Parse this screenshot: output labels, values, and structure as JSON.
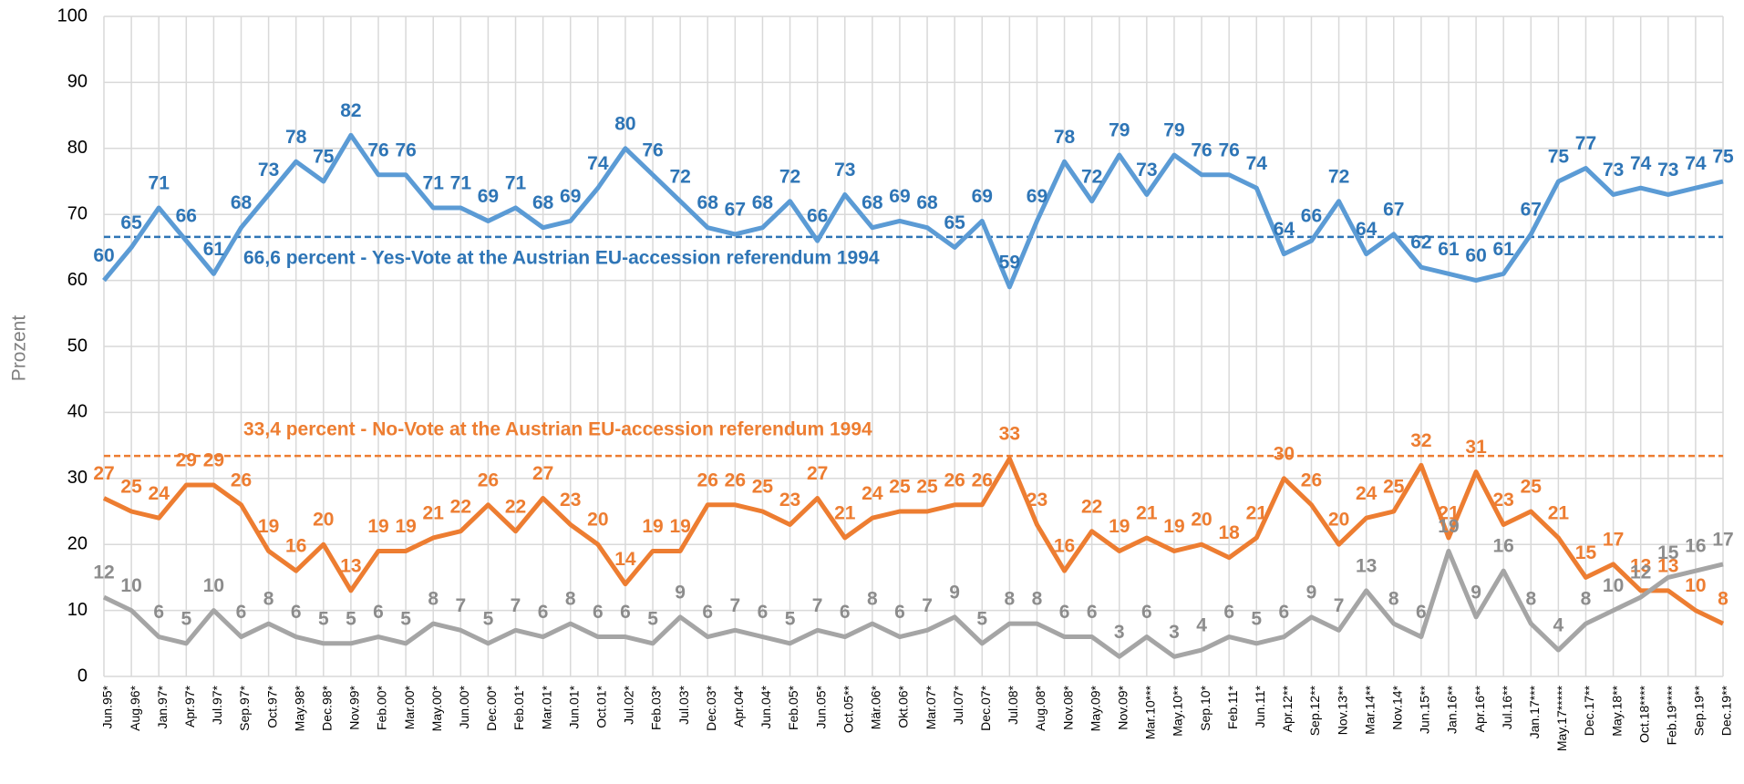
{
  "chart_data": {
    "type": "line",
    "y_label": "Prozent",
    "categories": [
      "Jun.95*",
      "Aug.96*",
      "Jan.97*",
      "Apr.97*",
      "Jul.97*",
      "Sep.97*",
      "Oct.97*",
      "May.98*",
      "Dec.98*",
      "Nov.99*",
      "Feb.00*",
      "Mar.00*",
      "May.00*",
      "Jun.00*",
      "Dec.00*",
      "Feb.01*",
      "Mar.01*",
      "Jun.01*",
      "Oct.01*",
      "Jul.02*",
      "Feb.03*",
      "Jul.03*",
      "Dec.03*",
      "Apr.04*",
      "Jun.04*",
      "Feb.05*",
      "Jun.05*",
      "Oct.05**",
      "Mär.06*",
      "Okt.06*",
      "Mar.07*",
      "Jul.07*",
      "Dec.07*",
      "Jul.08*",
      "Aug.08*",
      "Nov.08*",
      "May.09*",
      "Nov.09*",
      "Mar.10***",
      "May.10**",
      "Sep.10*",
      "Feb.11*",
      "Jun.11*",
      "Apr.12**",
      "Sep.12**",
      "Nov.13**",
      "Mar.14**",
      "Nov.14*",
      "Jun.15**",
      "Jan.16**",
      "Apr.16**",
      "Jul.16**",
      "Jan.17***",
      "May.17*****",
      "Dec.17**",
      "May.18**",
      "Oct.18****",
      "Feb.19****",
      "Sep.19**",
      "Dec.19**"
    ],
    "series": [
      {
        "color": "#5b9bd5",
        "label_color": "#2e75b6",
        "values": [
          60,
          65,
          71,
          66,
          61,
          68,
          73,
          78,
          75,
          82,
          76,
          76,
          71,
          71,
          69,
          71,
          68,
          69,
          74,
          80,
          76,
          72,
          68,
          67,
          68,
          72,
          66,
          73,
          68,
          69,
          68,
          65,
          69,
          59,
          69,
          78,
          72,
          79,
          73,
          79,
          76,
          76,
          74,
          64,
          66,
          72,
          64,
          67,
          62,
          61,
          60,
          61,
          67,
          75,
          77,
          73,
          74,
          73,
          74,
          75
        ]
      },
      {
        "color": "#ed7d31",
        "label_color": "#ed7d31",
        "values": [
          27,
          25,
          24,
          29,
          29,
          26,
          19,
          16,
          20,
          13,
          19,
          19,
          21,
          22,
          26,
          22,
          27,
          23,
          20,
          14,
          19,
          19,
          26,
          26,
          25,
          23,
          27,
          21,
          24,
          25,
          25,
          26,
          26,
          33,
          23,
          16,
          22,
          19,
          21,
          19,
          20,
          18,
          21,
          30,
          26,
          20,
          24,
          25,
          32,
          21,
          31,
          23,
          25,
          21,
          15,
          17,
          13,
          13,
          10,
          8
        ]
      },
      {
        "color": "#a5a5a5",
        "label_color": "#8c8c8c",
        "values": [
          12,
          10,
          6,
          5,
          10,
          6,
          8,
          6,
          5,
          5,
          6,
          5,
          8,
          7,
          5,
          7,
          6,
          8,
          6,
          6,
          5,
          9,
          6,
          7,
          6,
          5,
          7,
          6,
          8,
          6,
          7,
          9,
          5,
          8,
          8,
          6,
          6,
          3,
          6,
          3,
          4,
          6,
          5,
          6,
          9,
          7,
          13,
          8,
          6,
          19,
          9,
          16,
          8,
          4,
          8,
          10,
          12,
          15,
          16,
          17
        ]
      }
    ],
    "annotations": [
      {
        "text": "66,6 percent - Yes-Vote at the Austrian EU-accession referendum 1994",
        "value": 66.6,
        "color": "#2e75b6"
      },
      {
        "text": "33,4 percent - No-Vote at the Austrian EU-accession referendum 1994",
        "value": 33.4,
        "color": "#ed7d31"
      }
    ],
    "ylim": [
      0,
      100
    ],
    "yticks": [
      0,
      10,
      20,
      30,
      40,
      50,
      60,
      70,
      80,
      90,
      100
    ],
    "grid": true
  }
}
